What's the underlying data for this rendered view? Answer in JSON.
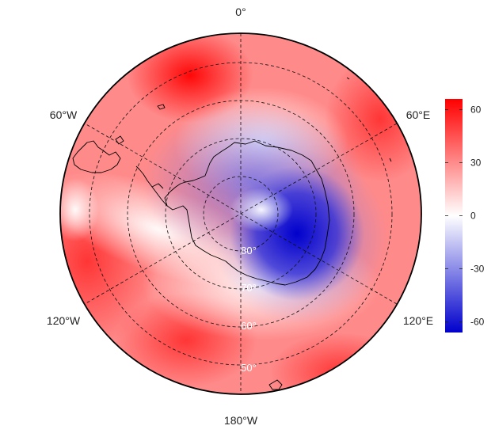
{
  "map": {
    "projection": "south-polar-stereographic",
    "center": "South Pole",
    "boundary_latitude": "-40",
    "longitude_labels": [
      {
        "text": "0°",
        "lon": 0
      },
      {
        "text": "60°E",
        "lon": 60
      },
      {
        "text": "120°E",
        "lon": 120
      },
      {
        "text": "180°W",
        "lon": 180
      },
      {
        "text": "120°W",
        "lon": -120
      },
      {
        "text": "60°W",
        "lon": -60
      }
    ],
    "latitude_labels": [
      {
        "text": "80°",
        "lat": -80
      },
      {
        "text": "70°",
        "lat": -70
      },
      {
        "text": "60°",
        "lat": -60
      },
      {
        "text": "50°",
        "lat": -50
      }
    ],
    "gridlines": "dashed",
    "coastlines": true
  },
  "colorbar": {
    "min": -66,
    "max": 66,
    "ticks": [
      {
        "value": 60,
        "label": "60"
      },
      {
        "value": 30,
        "label": "30"
      },
      {
        "value": 0,
        "label": "0"
      },
      {
        "value": -30,
        "label": "-30"
      },
      {
        "value": -60,
        "label": "-60"
      }
    ],
    "colors": {
      "high": "#ff0000",
      "mid": "#ffffff",
      "low": "#0000cc"
    }
  }
}
